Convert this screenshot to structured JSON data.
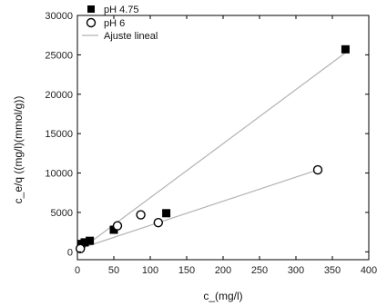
{
  "chart_data": {
    "type": "scatter",
    "xlabel": "c_(mg/l)",
    "ylabel": "c_e/q ((mg/l)(mmol/g))",
    "xlim": [
      0,
      400
    ],
    "ylim": [
      -1000,
      30000
    ],
    "xticks": [
      0,
      50,
      100,
      150,
      200,
      250,
      300,
      350,
      400
    ],
    "yticks": [
      0,
      5000,
      10000,
      15000,
      20000,
      25000,
      30000
    ],
    "grid": false,
    "legend_position": "top-left",
    "series": [
      {
        "name": "pH 4.75",
        "marker": "filled-square",
        "x": [
          5,
          10,
          17,
          50,
          122,
          368
        ],
        "y": [
          1000,
          1200,
          1400,
          2800,
          4900,
          25700
        ],
        "fit": {
          "x": [
            0,
            370
          ],
          "y": [
            0,
            25400
          ]
        }
      },
      {
        "name": "pH 6",
        "marker": "open-circle",
        "x": [
          4,
          55,
          87,
          111,
          330
        ],
        "y": [
          400,
          3300,
          4700,
          3700,
          10400
        ],
        "fit": {
          "x": [
            0,
            330
          ],
          "y": [
            300,
            10400
          ]
        }
      }
    ],
    "fit_legend": "Ajuste lineal",
    "colors": {
      "marker": "#000000",
      "fit_line": "#b3b3b3",
      "axis": "#000000"
    }
  }
}
